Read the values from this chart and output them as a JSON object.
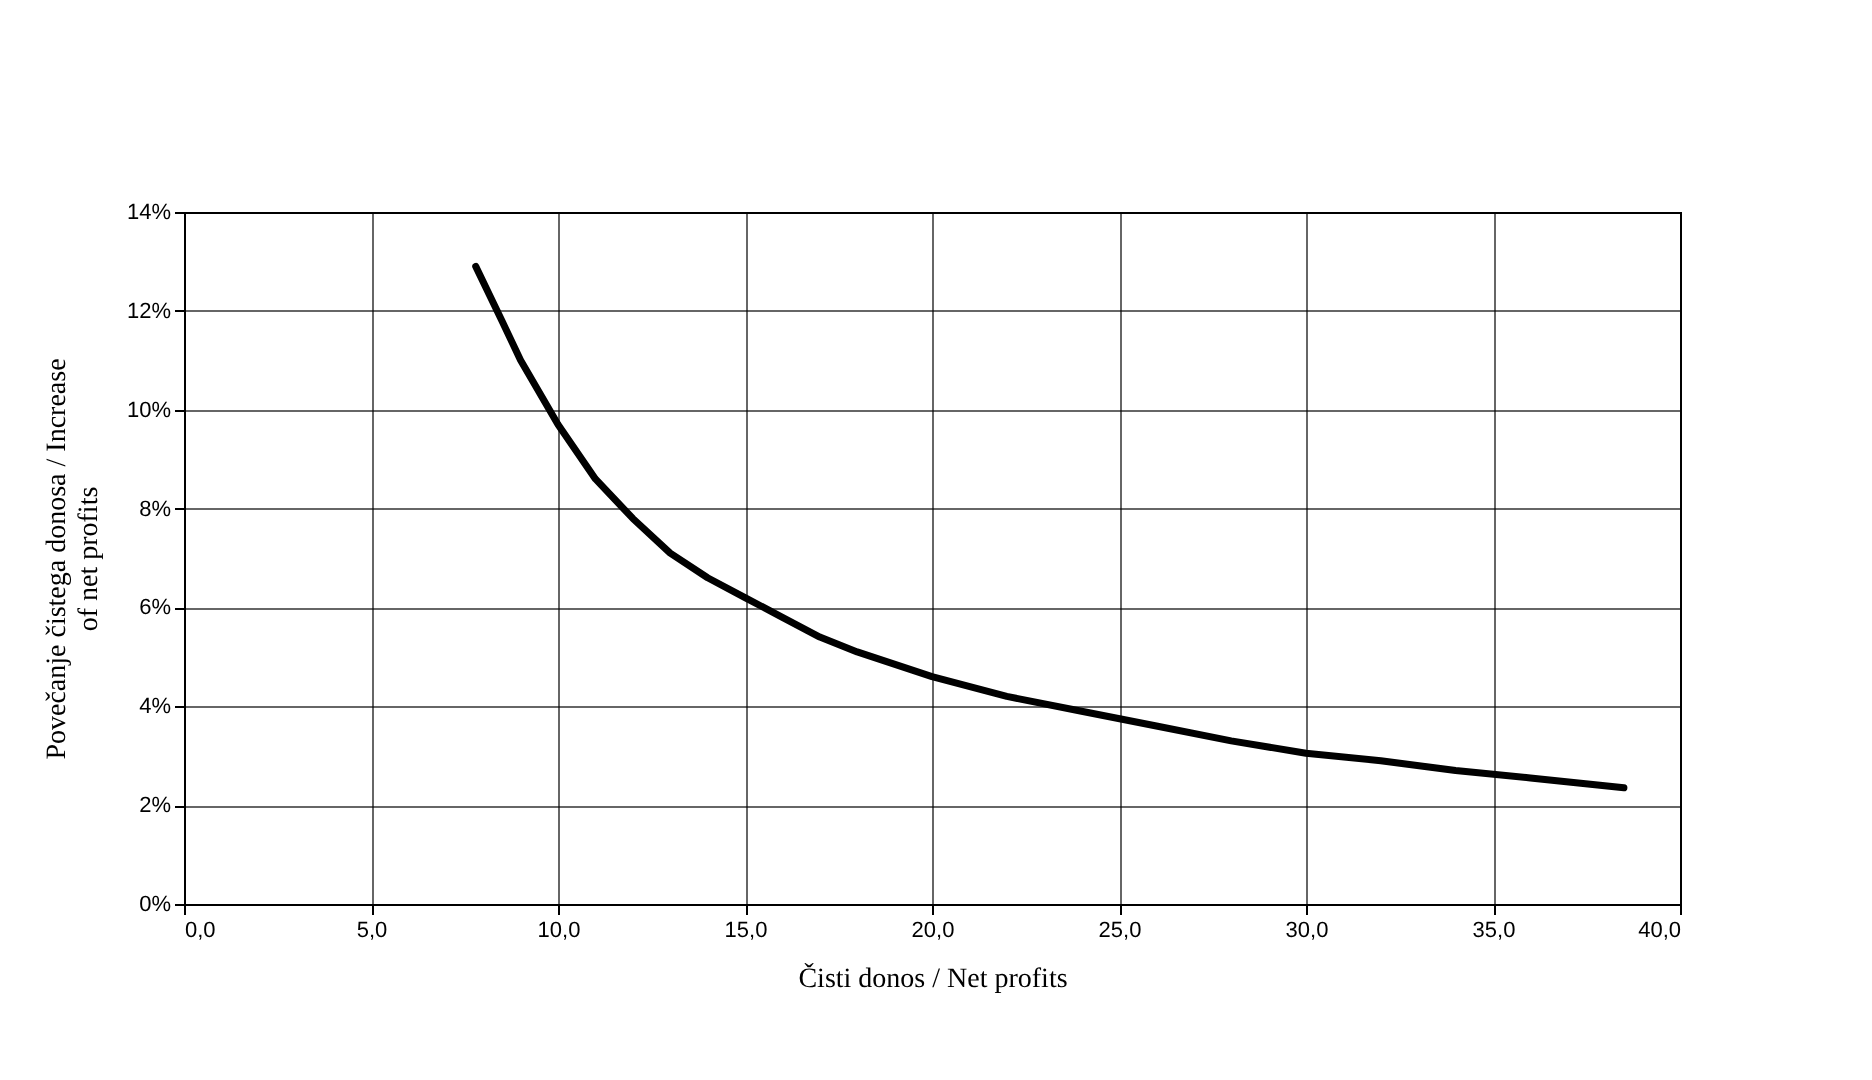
{
  "chart_data": {
    "type": "line",
    "xlabel": "Čisti donos / Net profits",
    "ylabel": "Povečanje čistega donosa / Increase of net profits",
    "x": [
      7.8,
      8.5,
      9,
      10,
      11,
      12,
      13,
      14,
      15,
      16,
      17,
      18,
      20,
      22,
      24,
      26,
      28,
      30,
      32,
      34,
      36,
      38.5
    ],
    "series": [
      {
        "color": "#000000",
        "values": [
          12.9,
          11.8,
          11.0,
          9.7,
          8.6,
          7.8,
          7.1,
          6.6,
          6.2,
          5.8,
          5.4,
          5.1,
          4.6,
          4.2,
          3.9,
          3.6,
          3.3,
          3.05,
          2.9,
          2.7,
          2.55,
          2.35
        ]
      }
    ],
    "xlim": [
      0,
      40
    ],
    "ylim": [
      0,
      14
    ],
    "xticks": [
      {
        "value": 0,
        "label": "0,0"
      },
      {
        "value": 5,
        "label": "5,0"
      },
      {
        "value": 10,
        "label": "10,0"
      },
      {
        "value": 15,
        "label": "15,0"
      },
      {
        "value": 20,
        "label": "20,0"
      },
      {
        "value": 25,
        "label": "25,0"
      },
      {
        "value": 30,
        "label": "30,0"
      },
      {
        "value": 35,
        "label": "35,0"
      },
      {
        "value": 40,
        "label": "40,0"
      }
    ],
    "yticks": [
      {
        "value": 0,
        "label": "0%"
      },
      {
        "value": 2,
        "label": "2%"
      },
      {
        "value": 4,
        "label": "4%"
      },
      {
        "value": 6,
        "label": "6%"
      },
      {
        "value": 8,
        "label": "8%"
      },
      {
        "value": 10,
        "label": "10%"
      },
      {
        "value": 12,
        "label": "12%"
      },
      {
        "value": 14,
        "label": "14%"
      }
    ],
    "grid": true,
    "marker": "none",
    "line_style": "solid"
  }
}
